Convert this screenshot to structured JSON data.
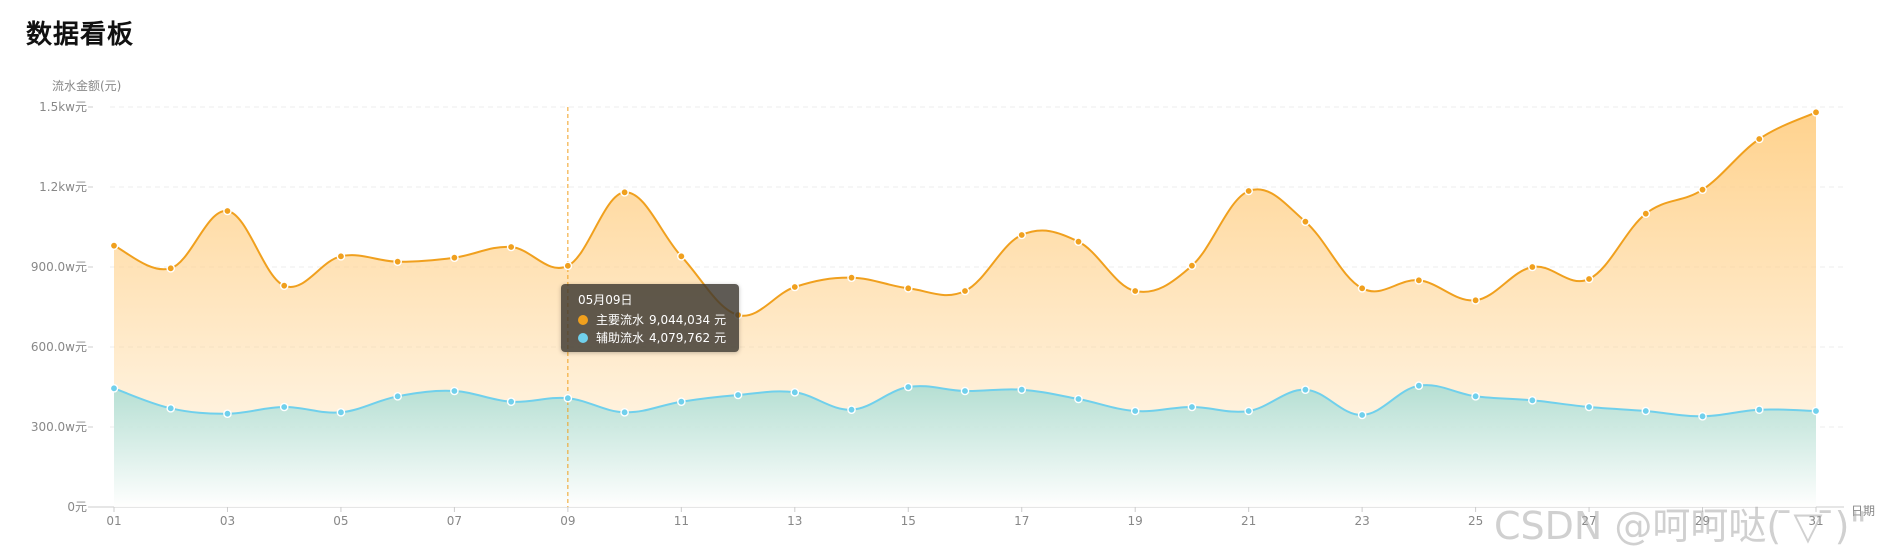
{
  "title": "数据看板",
  "colors": {
    "primary_line": "#f0a01e",
    "primary_fill_top": "#ffd088",
    "secondary_line": "#70d0ec",
    "secondary_fill_top": "#a8dcd2",
    "axis": "#cccccc",
    "grid": "#eeeeee",
    "label": "#888888",
    "cursor": "#f0a01e"
  },
  "chart_data": {
    "type": "area",
    "ylabel": "流水金额(元)",
    "xlabel": "日期",
    "y_ticks": [
      "0元",
      "300.0w元",
      "600.0w元",
      "900.0w元",
      "1.2kw元",
      "1.5kw元"
    ],
    "ylim": [
      0,
      15000000
    ],
    "grid": true,
    "smooth": true,
    "x": [
      "01",
      "02",
      "03",
      "04",
      "05",
      "06",
      "07",
      "08",
      "09",
      "10",
      "11",
      "12",
      "13",
      "14",
      "15",
      "16",
      "17",
      "18",
      "19",
      "20",
      "21",
      "22",
      "23",
      "24",
      "25",
      "26",
      "27",
      "28",
      "29",
      "30",
      "31"
    ],
    "x_tick_labels": [
      "01",
      "03",
      "05",
      "07",
      "09",
      "11",
      "13",
      "15",
      "17",
      "19",
      "21",
      "23",
      "25",
      "27",
      "29",
      "31"
    ],
    "series": [
      {
        "name": "主要流水",
        "values": [
          9800000,
          8950000,
          11100000,
          8300000,
          9400000,
          9200000,
          9350000,
          9750000,
          9044034,
          11800000,
          9400000,
          7200000,
          8250000,
          8600000,
          8200000,
          8100000,
          10200000,
          9950000,
          8100000,
          9050000,
          11850000,
          10700000,
          8200000,
          8500000,
          7750000,
          9000000,
          8550000,
          11000000,
          11900000,
          13800000,
          14800000
        ]
      },
      {
        "name": "辅助流水",
        "values": [
          4450000,
          3700000,
          3500000,
          3750000,
          3550000,
          4150000,
          4350000,
          3950000,
          4079762,
          3550000,
          3950000,
          4200000,
          4300000,
          3650000,
          4500000,
          4350000,
          4400000,
          4050000,
          3600000,
          3750000,
          3600000,
          4400000,
          3450000,
          4550000,
          4150000,
          4000000,
          3750000,
          3600000,
          3400000,
          3650000,
          3600000
        ]
      }
    ],
    "highlight_index": 8
  },
  "tooltip": {
    "date": "05月09日",
    "rows": [
      {
        "label": "主要流水",
        "value": "9,044,034",
        "unit": "元",
        "color": "#f0a01e"
      },
      {
        "label": "辅助流水",
        "value": "4,079,762",
        "unit": "元",
        "color": "#70d0ec"
      }
    ]
  },
  "watermark": "CSDN @呵呵哒( ̄▽ ̄)\""
}
